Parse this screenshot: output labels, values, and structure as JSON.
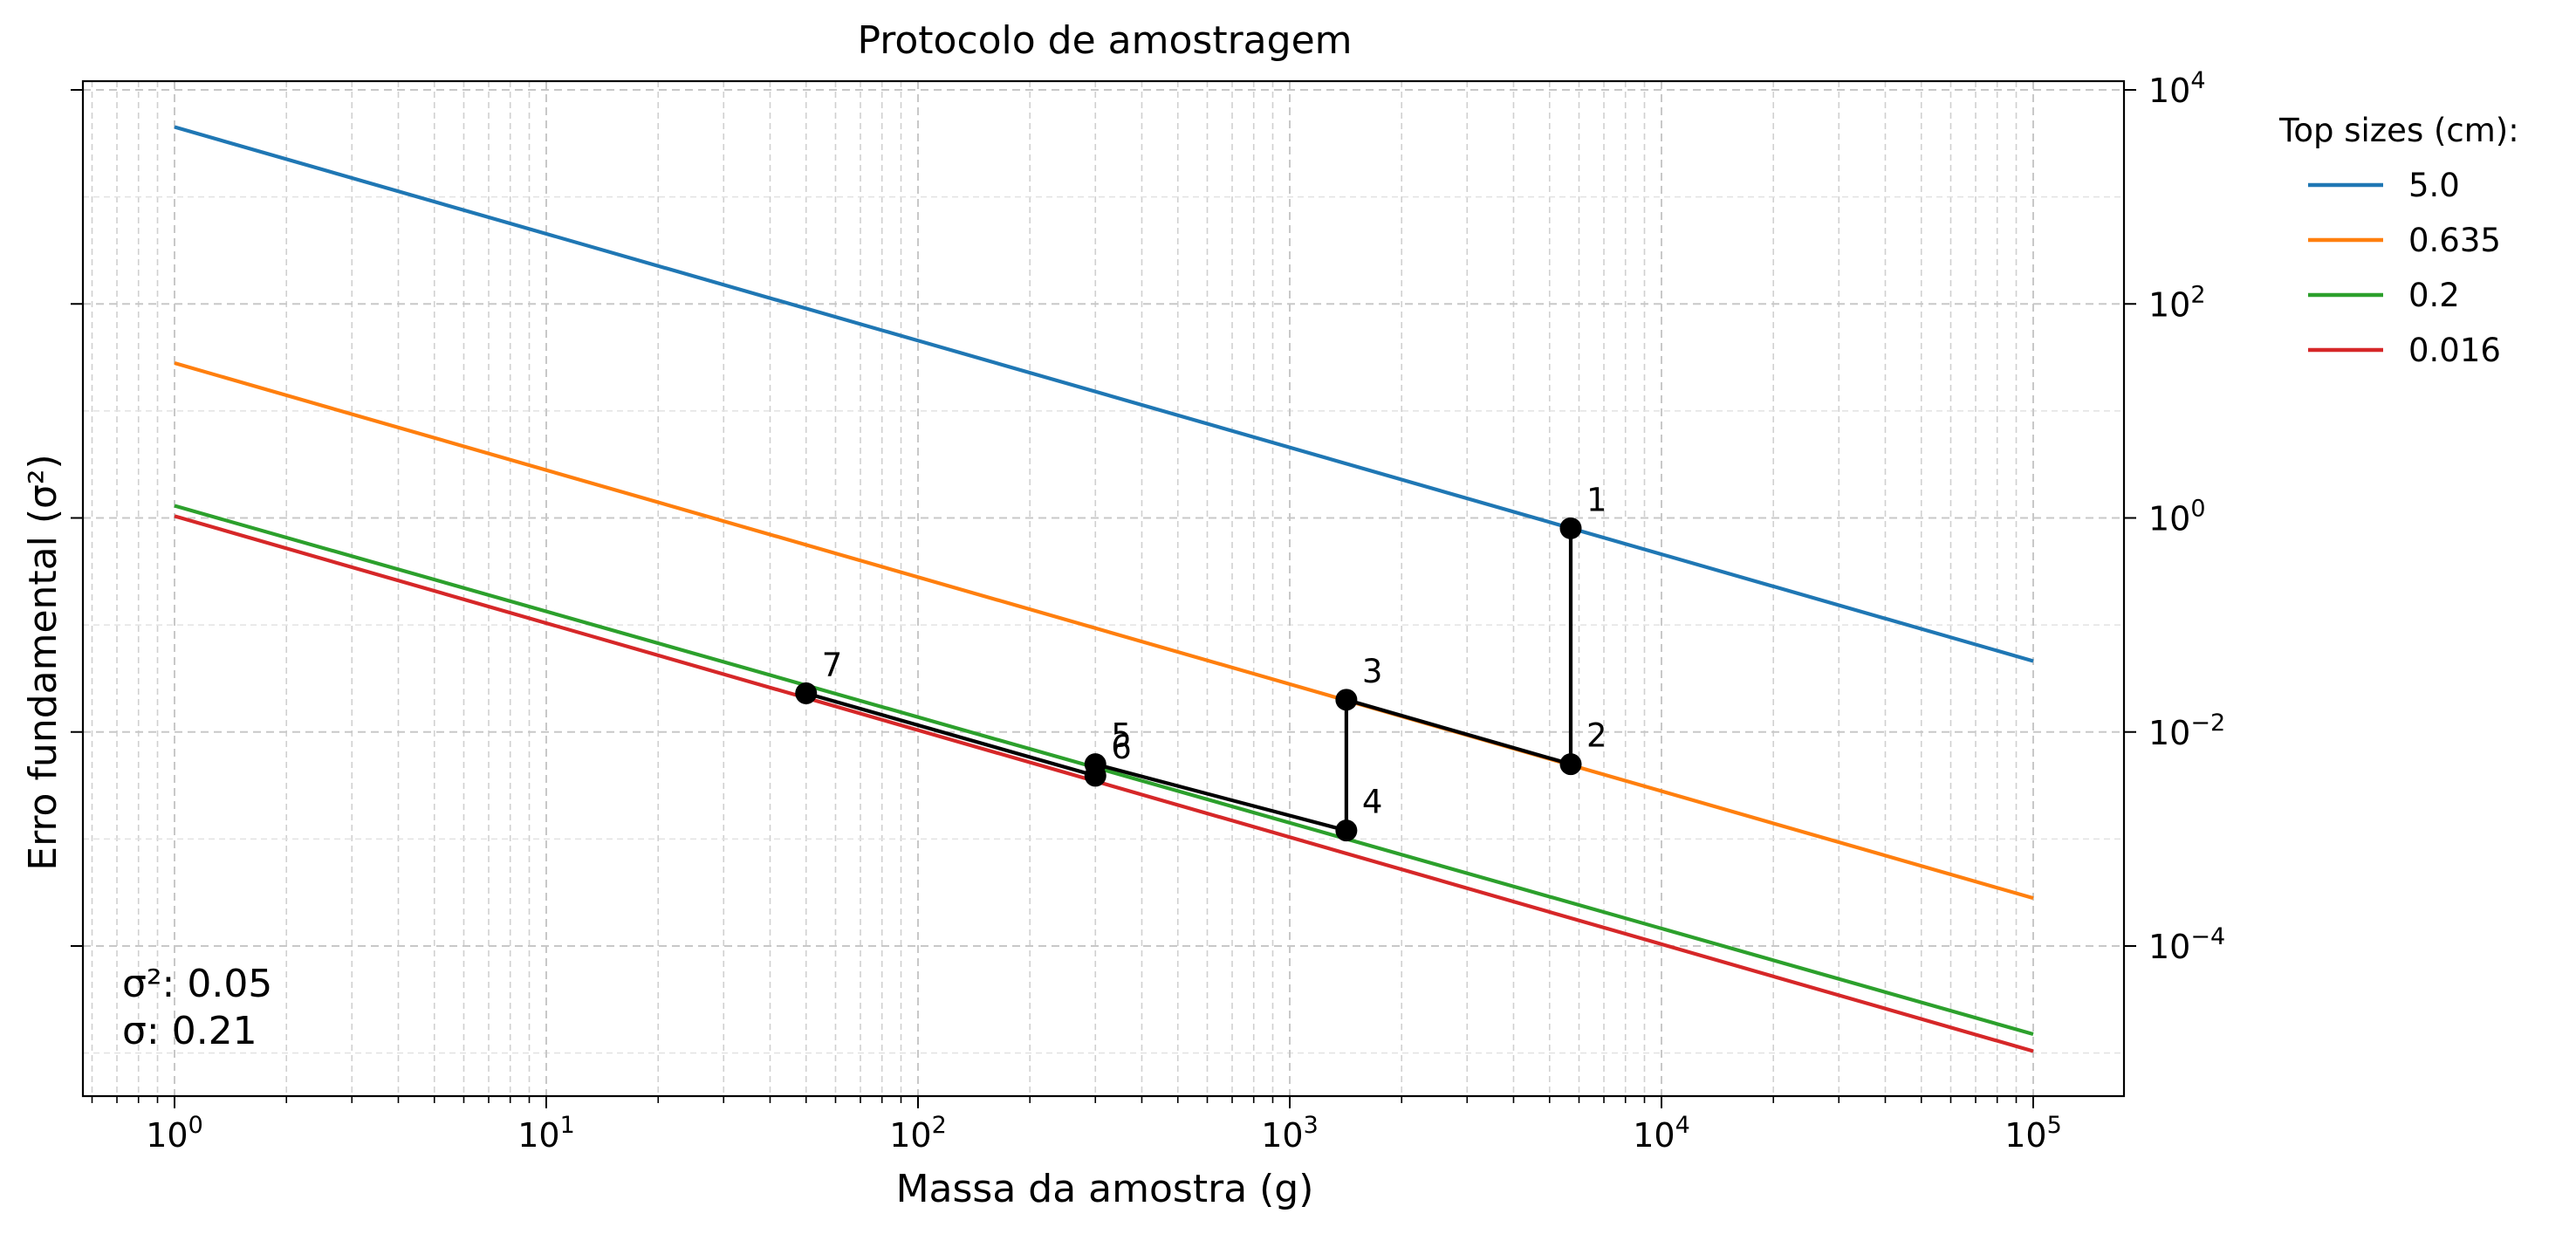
{
  "chart_data": {
    "type": "line",
    "title": "Protocolo de amostragem",
    "xlabel": "Massa da amostra (g)",
    "ylabel": "Erro fundamental (σ²)",
    "x_scale": "log",
    "y_scale": "log",
    "xlim": [
      0.55,
      180000
    ],
    "ylim": [
      1.8e-06,
      15000
    ],
    "grid": true,
    "x_ticks": [
      1,
      10,
      100,
      1000,
      10000,
      100000
    ],
    "y_ticks": [
      0.0001,
      0.01,
      1,
      100,
      10000
    ],
    "x_tick_labels": [
      {
        "base": "10",
        "exp": "0"
      },
      {
        "base": "10",
        "exp": "1"
      },
      {
        "base": "10",
        "exp": "2"
      },
      {
        "base": "10",
        "exp": "3"
      },
      {
        "base": "10",
        "exp": "4"
      },
      {
        "base": "10",
        "exp": "5"
      }
    ],
    "y_tick_labels": [
      {
        "base": "10",
        "exp": "−4"
      },
      {
        "base": "10",
        "exp": "−2"
      },
      {
        "base": "10",
        "exp": "0"
      },
      {
        "base": "10",
        "exp": "2"
      },
      {
        "base": "10",
        "exp": "4"
      }
    ],
    "legend": {
      "title": "Top sizes (cm):",
      "placement": "outside-right-top"
    },
    "series": [
      {
        "name": "5.0",
        "color": "#1f77b4",
        "x": [
          1,
          100000
        ],
        "y": [
          4500,
          0.046
        ]
      },
      {
        "name": "0.635",
        "color": "#ff7f0e",
        "x": [
          1,
          100000
        ],
        "y": [
          28,
          0.00028
        ]
      },
      {
        "name": "0.2",
        "color": "#2ca02c",
        "x": [
          1,
          100000
        ],
        "y": [
          1.3,
          1.5e-05
        ]
      },
      {
        "name": "0.016",
        "color": "#d62728",
        "x": [
          1,
          100000
        ],
        "y": [
          1.04,
          1.04e-05
        ]
      }
    ],
    "protocol_path": {
      "color": "#000000",
      "points": [
        {
          "label": "1",
          "x": 5700,
          "y": 0.8
        },
        {
          "label": "2",
          "x": 5700,
          "y": 0.005
        },
        {
          "label": "3",
          "x": 1420,
          "y": 0.02
        },
        {
          "label": "4",
          "x": 1420,
          "y": 0.0012
        },
        {
          "label": "5",
          "x": 300,
          "y": 0.005
        },
        {
          "label": "6",
          "x": 300,
          "y": 0.0039
        },
        {
          "label": "7",
          "x": 50,
          "y": 0.023
        }
      ]
    },
    "annotations": {
      "variance": "σ²: 0.05",
      "sigma": "σ: 0.21"
    }
  }
}
